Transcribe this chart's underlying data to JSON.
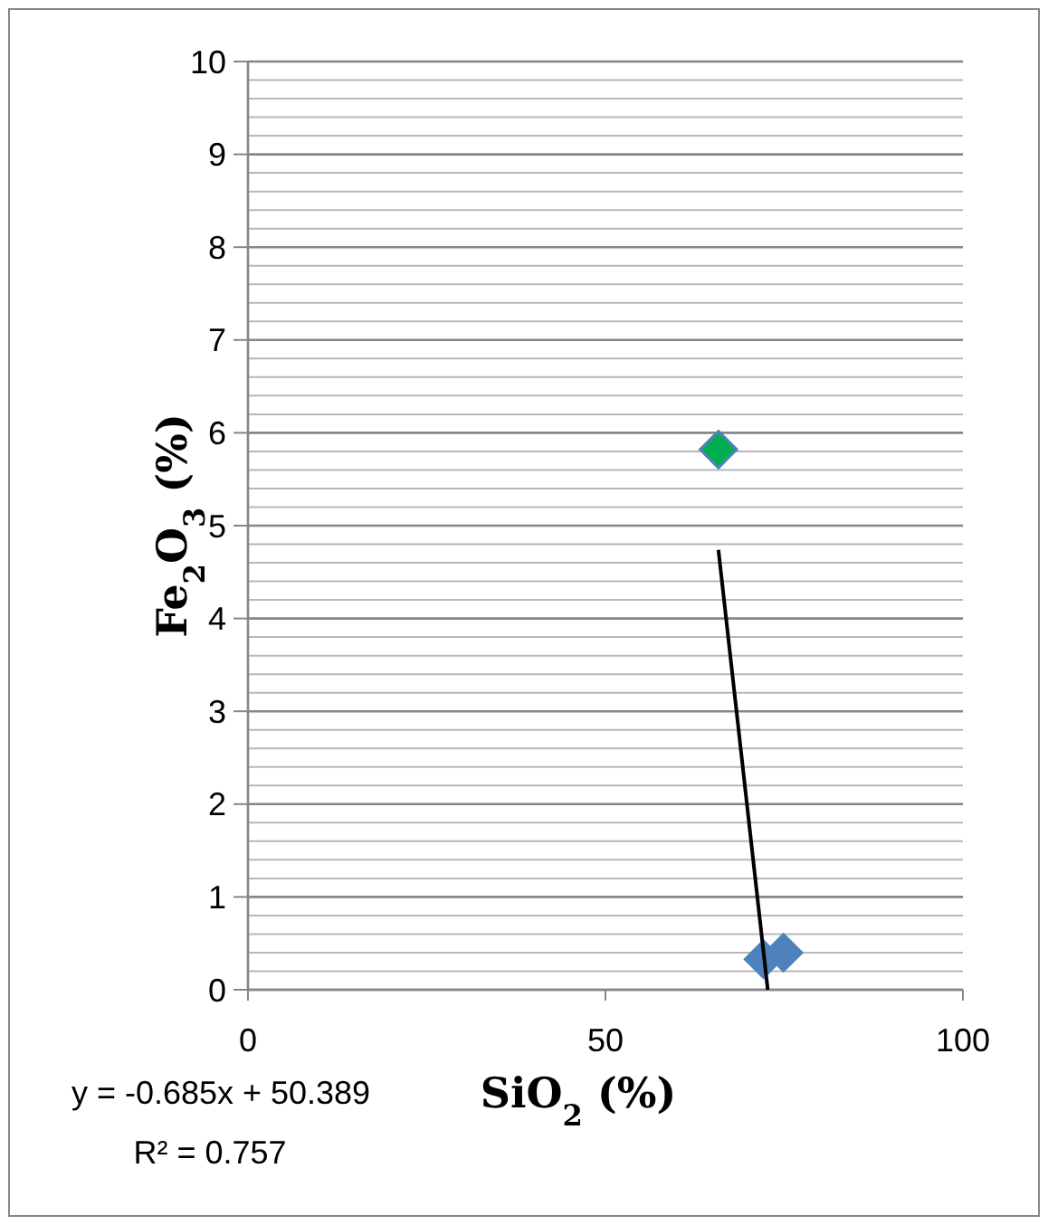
{
  "chart_data": {
    "type": "scatter",
    "xlabel": "SiO$_{2}$ (%)",
    "ylabel": "Fe$_{2}$O$_{3}$ (%)",
    "xlim": [
      0,
      100
    ],
    "xticks": [
      0,
      50,
      100
    ],
    "ylim": [
      0,
      10
    ],
    "yticks": [
      0,
      {
        "value": 0.2,
        "label": null
      },
      {
        "value": 0.4,
        "label": null
      },
      {
        "value": 0.6,
        "label": null
      },
      {
        "value": 0.8,
        "label": null
      },
      1,
      {
        "value": 1.2,
        "label": null
      },
      {
        "value": 1.4,
        "label": null
      },
      {
        "value": 1.6,
        "label": null
      },
      {
        "value": 1.8,
        "label": null
      },
      2,
      {
        "value": 2.2,
        "label": null
      },
      {
        "value": 2.4,
        "label": null
      },
      {
        "value": 2.6,
        "label": null
      },
      {
        "value": 2.8,
        "label": null
      },
      3,
      {
        "value": 3.2,
        "label": null
      },
      {
        "value": 3.4,
        "label": null
      },
      {
        "value": 3.6,
        "label": null
      },
      {
        "value": 3.8,
        "label": null
      },
      4,
      {
        "value": 4.2,
        "label": null
      },
      {
        "value": 4.4,
        "label": null
      },
      {
        "value": 4.6,
        "label": null
      },
      {
        "value": 4.8,
        "label": null
      },
      5,
      {
        "value": 5.2,
        "label": null
      },
      {
        "value": 5.4,
        "label": null
      },
      {
        "value": 5.6,
        "label": null
      },
      {
        "value": 5.8,
        "label": null
      },
      6,
      {
        "value": 6.2,
        "label": null
      },
      {
        "value": 6.4,
        "label": null
      },
      {
        "value": 6.6,
        "label": null
      },
      {
        "value": 6.8,
        "label": null
      },
      7,
      {
        "value": 7.2,
        "label": null
      },
      {
        "value": 7.4,
        "label": null
      },
      {
        "value": 7.6,
        "label": null
      },
      {
        "value": 7.8,
        "label": null
      },
      8,
      {
        "value": 8.2,
        "label": null
      },
      {
        "value": 8.4,
        "label": null
      },
      {
        "value": 8.6,
        "label": null
      },
      {
        "value": 8.8,
        "label": null
      },
      9,
      {
        "value": 9.2,
        "label": null
      },
      {
        "value": 9.4,
        "label": null
      },
      {
        "value": 9.6,
        "label": null
      },
      {
        "value": 9.8,
        "label": null
      },
      10
    ],
    "grid": "y",
    "marker": "diamond",
    "series": [
      {
        "type": "scatter",
        "color": "#4f81bd",
        "x": [
          72.1,
          74.9
        ],
        "values": [
          0.33,
          0.4
        ]
      },
      {
        "type": "scatter",
        "color": "#00b050",
        "x": [
          65.8
        ],
        "values": [
          5.82
        ]
      },
      {
        "type": "line",
        "color": "#000000",
        "x": [
          65.8,
          72.7
        ],
        "values": [
          4.74,
          0
        ],
        "marker": "none"
      }
    ],
    "annotations": [
      "y = -0.685x + 50.389",
      "R² = 0.757"
    ]
  }
}
